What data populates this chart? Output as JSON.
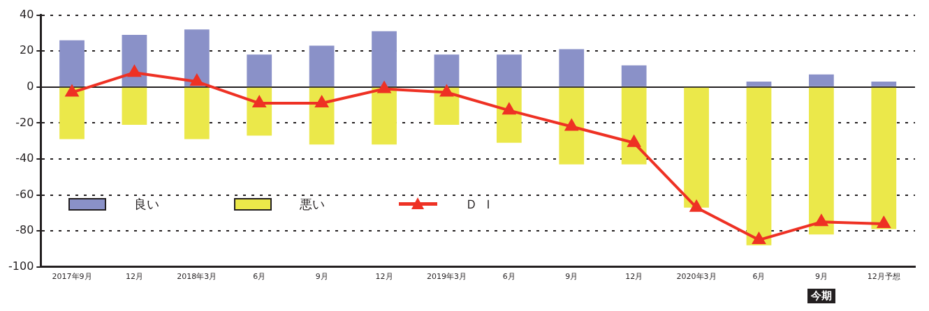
{
  "chart_data": {
    "type": "bar",
    "stacked": true,
    "categories": [
      "2017年9月",
      "12月",
      "2018年3月",
      "6月",
      "9月",
      "12月",
      "2019年3月",
      "6月",
      "9月",
      "12月",
      "2020年3月",
      "6月",
      "9月",
      "12月予想"
    ],
    "series": [
      {
        "name": "良い",
        "color": "#8a91c8",
        "values": [
          26,
          29,
          32,
          18,
          23,
          31,
          18,
          18,
          21,
          12,
          0,
          3,
          7,
          3
        ]
      },
      {
        "name": "悪い",
        "color": "#ebe84a",
        "values": [
          -29,
          -21,
          -29,
          -27,
          -32,
          -32,
          -21,
          -31,
          -43,
          -43,
          -67,
          -88,
          -82,
          -79
        ]
      },
      {
        "name": "Ｄ Ｉ",
        "type": "line",
        "color": "#ee3124",
        "marker": "triangle",
        "values": [
          -3,
          8,
          3,
          -9,
          -9,
          -1,
          -3,
          -13,
          -22,
          -31,
          -67,
          -85,
          -75,
          -76
        ]
      }
    ],
    "ylim": [
      -100,
      40
    ],
    "yticks": [
      -100,
      -80,
      -60,
      -40,
      -20,
      0,
      20,
      40
    ],
    "grid": "y",
    "legend": "left",
    "annotations": [
      "今期"
    ]
  }
}
